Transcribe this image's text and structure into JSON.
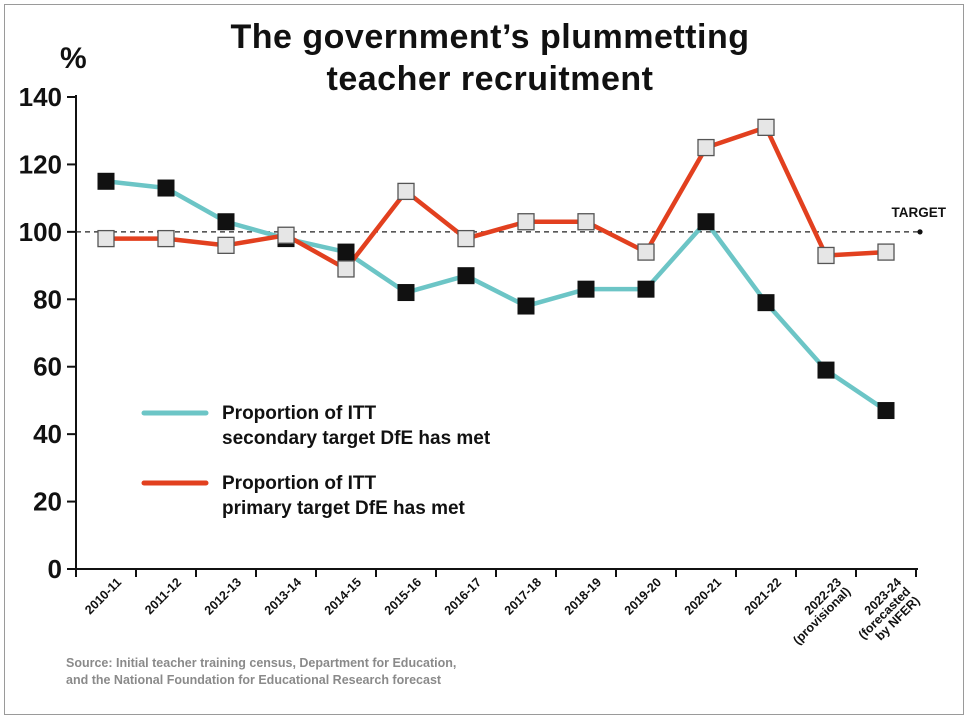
{
  "chart_data": {
    "type": "line",
    "title_line1": "The government’s plummetting",
    "title_line2": "teacher recruitment",
    "ylabel": "%",
    "ylim": [
      0,
      140
    ],
    "yticks": [
      0,
      20,
      40,
      60,
      80,
      100,
      120,
      140
    ],
    "categories": [
      [
        "2010-11"
      ],
      [
        "2011-12"
      ],
      [
        "2012-13"
      ],
      [
        "2013-14"
      ],
      [
        "2014-15"
      ],
      [
        "2015-16"
      ],
      [
        "2016-17"
      ],
      [
        "2017-18"
      ],
      [
        "2018-19"
      ],
      [
        "2019-20"
      ],
      [
        "2020-21"
      ],
      [
        "2021-22"
      ],
      [
        "2022-23",
        "(provisional)"
      ],
      [
        "2023-24",
        "(forecasted",
        "by NFER)"
      ]
    ],
    "target": {
      "value": 100,
      "label": "TARGET"
    },
    "series": [
      {
        "name_line1": "Proportion of ITT",
        "name_line2": "secondary target DfE has met",
        "color": "#6cc5c6",
        "marker": "#111111",
        "values": [
          115,
          113,
          103,
          98,
          94,
          82,
          87,
          78,
          83,
          83,
          103,
          79,
          59,
          47
        ]
      },
      {
        "name_line1": "Proportion of ITT",
        "name_line2": "primary target DfE has met",
        "color": "#e2401f",
        "marker": "#e6e6e6",
        "values": [
          98,
          98,
          96,
          99,
          89,
          112,
          98,
          103,
          103,
          94,
          125,
          131,
          93,
          94
        ]
      }
    ],
    "legend_position": "bottom-left",
    "grid": false
  },
  "source": {
    "line1": "Source: Initial teacher training census, Department for Education,",
    "line2": "and the National Foundation for Educational Research forecast"
  }
}
